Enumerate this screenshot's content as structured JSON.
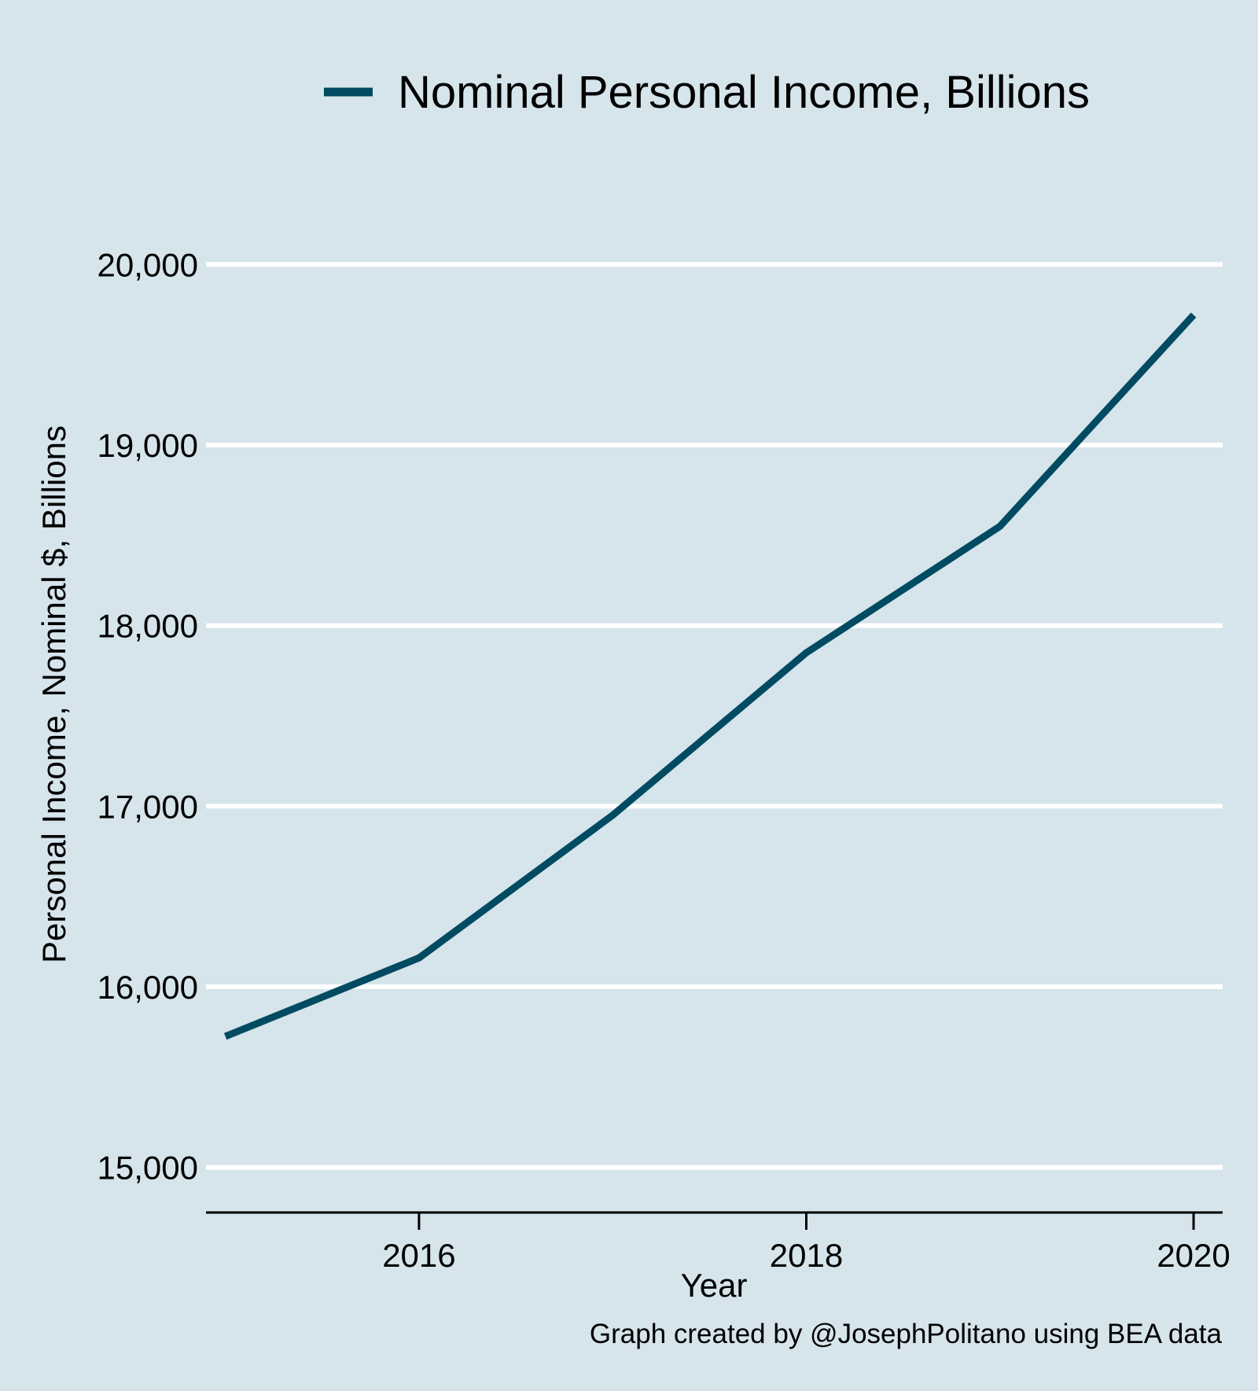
{
  "colors": {
    "background": "#d6e4eb",
    "gridline": "#ffffff",
    "series_line": "#004b62",
    "axis": "#000000"
  },
  "caption": "Graph created by @JosephPolitano using BEA data",
  "chart_data": {
    "type": "line",
    "title": "",
    "xlabel": "Year",
    "ylabel": "Personal Income, Nominal $, Billions",
    "legend_position": "top",
    "grid": "horizontal",
    "xlim": [
      2014.9,
      2020.15
    ],
    "ylim": [
      14750,
      20550
    ],
    "x_ticks": [
      2016,
      2018,
      2020
    ],
    "x_tick_labels": [
      "2016",
      "2018",
      "2020"
    ],
    "y_ticks": [
      15000,
      16000,
      17000,
      18000,
      19000,
      20000
    ],
    "y_tick_labels": [
      "15,000",
      "16,000",
      "17,000",
      "18,000",
      "19,000",
      "20,000"
    ],
    "series": [
      {
        "name": "Nominal Personal Income, Billions",
        "color": "#004b62",
        "x": [
          2015,
          2016,
          2017,
          2018,
          2019,
          2020
        ],
        "values": [
          15725,
          16160,
          16950,
          17850,
          18550,
          19720
        ]
      }
    ]
  }
}
